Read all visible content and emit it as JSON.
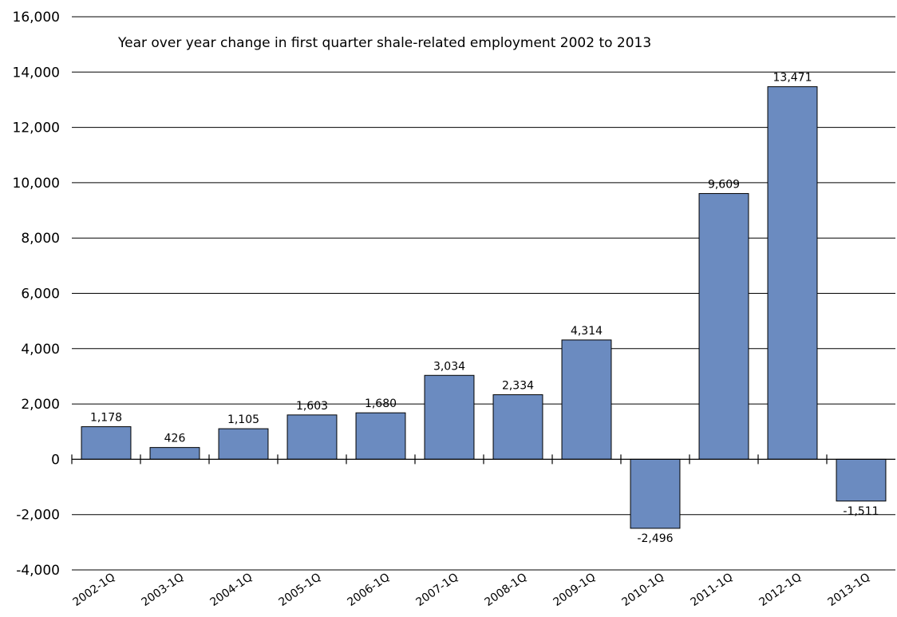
{
  "chart_data": {
    "type": "bar",
    "title": "Year over year change in first quarter shale-related employment 2002 to 2013",
    "categories": [
      "2002-1Q",
      "2003-1Q",
      "2004-1Q",
      "2005-1Q",
      "2006-1Q",
      "2007-1Q",
      "2008-1Q",
      "2009-1Q",
      "2010-1Q",
      "2011-1Q",
      "2012-1Q",
      "2013-1Q"
    ],
    "values": [
      1178,
      426,
      1105,
      1603,
      1680,
      3034,
      2334,
      4314,
      -2496,
      9609,
      13471,
      -1511
    ],
    "value_labels": [
      "1,178",
      "426",
      "1,105",
      "1,603",
      "1,680",
      "3,034",
      "2,334",
      "4,314",
      "-2,496",
      "9,609",
      "13,471",
      "-1,511"
    ],
    "yticks": [
      -4000,
      -2000,
      0,
      2000,
      4000,
      6000,
      8000,
      10000,
      12000,
      14000,
      16000
    ],
    "ytick_labels": [
      "-4,000",
      "-2,000",
      "0",
      "2,000",
      "4,000",
      "6,000",
      "8,000",
      "10,000",
      "12,000",
      "14,000",
      "16,000"
    ],
    "ylim": [
      -4000,
      16000
    ],
    "xlabel": "",
    "ylabel": "",
    "grid": true,
    "legend": "none",
    "bar_color": "#6b8bc0"
  }
}
